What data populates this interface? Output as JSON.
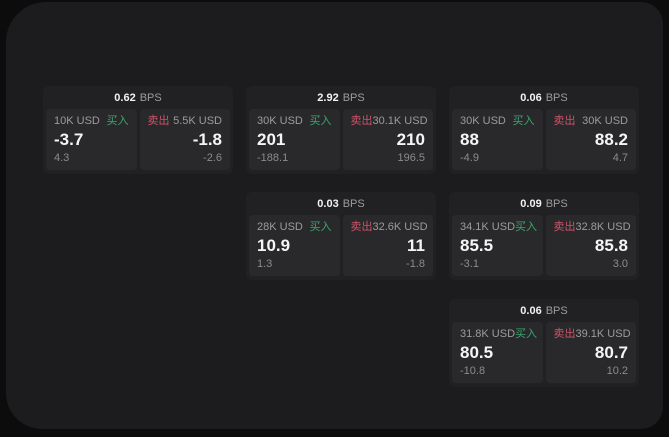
{
  "labels": {
    "bps": "BPS",
    "buy": "买入",
    "sell": "卖出"
  },
  "colors": {
    "page_background": "#0c0c0c",
    "surface_background": "#1c1c1e",
    "card_background": "#212123",
    "panel_background": "#29292b",
    "primary_text": "#f5f5f5",
    "secondary_text": "#9c9c9c",
    "buy_green": "#3aa76d",
    "sell_red": "#cf5268"
  },
  "cards": [
    {
      "bps": "0.62",
      "buy": {
        "amount": "10K USD",
        "price": "-3.7",
        "delta": "4.3"
      },
      "sell": {
        "amount": "5.5K USD",
        "price": "-1.8",
        "delta": "-2.6"
      }
    },
    {
      "bps": "2.92",
      "buy": {
        "amount": "30K USD",
        "price": "201",
        "delta": "-188.1"
      },
      "sell": {
        "amount": "30.1K USD",
        "price": "210",
        "delta": "196.5"
      }
    },
    {
      "bps": "0.06",
      "buy": {
        "amount": "30K USD",
        "price": "88",
        "delta": "-4.9"
      },
      "sell": {
        "amount": "30K USD",
        "price": "88.2",
        "delta": "4.7"
      }
    },
    {
      "bps": "0.03",
      "buy": {
        "amount": "28K USD",
        "price": "10.9",
        "delta": "1.3"
      },
      "sell": {
        "amount": "32.6K USD",
        "price": "11",
        "delta": "-1.8"
      }
    },
    {
      "bps": "0.09",
      "buy": {
        "amount": "34.1K USD",
        "price": "85.5",
        "delta": "-3.1"
      },
      "sell": {
        "amount": "32.8K USD",
        "price": "85.8",
        "delta": "3.0"
      }
    },
    {
      "bps": "0.06",
      "buy": {
        "amount": "31.8K USD",
        "price": "80.5",
        "delta": "-10.8"
      },
      "sell": {
        "amount": "39.1K USD",
        "price": "80.7",
        "delta": "10.2"
      }
    }
  ]
}
